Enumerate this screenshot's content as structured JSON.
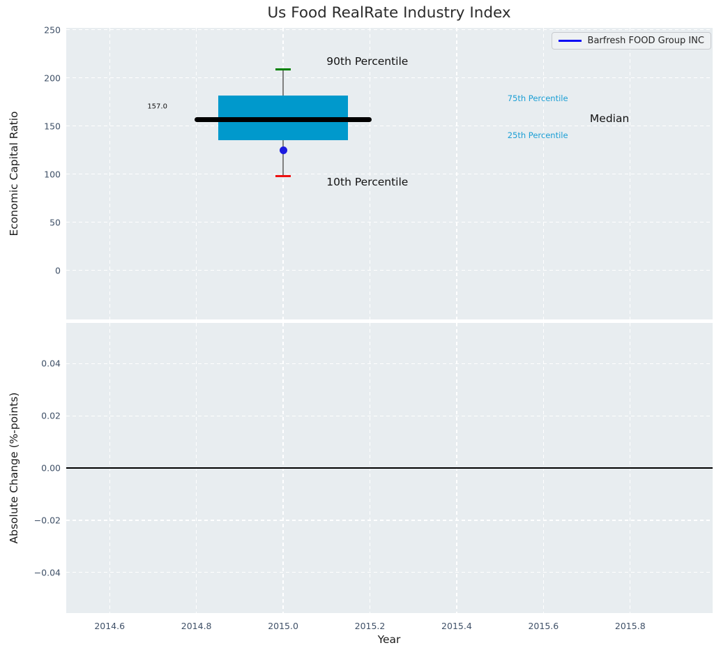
{
  "figure": {
    "title": "Us Food RealRate Industry Index",
    "background": "#ffffff",
    "axes_background": "#e8edf0",
    "grid_color": "#ffffff",
    "tick_text_color": "#3f5067",
    "axis_label_color": "#1a1a1a"
  },
  "legend": {
    "label": "Barfresh FOOD Group INC",
    "line_color": "#0d0df5"
  },
  "chart_data": {
    "type": "boxplot",
    "title": "Us Food RealRate Industry Index",
    "xlabel": "Year",
    "xlim": [
      2014.5,
      2015.99
    ],
    "xticks": [
      {
        "v": 2014.6,
        "label": "2014.6"
      },
      {
        "v": 2014.8,
        "label": "2014.8"
      },
      {
        "v": 2015.0,
        "label": "2015.0"
      },
      {
        "v": 2015.2,
        "label": "2015.2"
      },
      {
        "v": 2015.4,
        "label": "2015.4"
      },
      {
        "v": 2015.6,
        "label": "2015.6"
      },
      {
        "v": 2015.8,
        "label": "2015.8"
      }
    ],
    "top_panel": {
      "ylabel": "Economic Capital Ratio",
      "ylim": [
        -51,
        252
      ],
      "yticks": [
        {
          "v": 250,
          "label": "250"
        },
        {
          "v": 200,
          "label": "200"
        },
        {
          "v": 150,
          "label": "150"
        },
        {
          "v": 100,
          "label": "100"
        },
        {
          "v": 50,
          "label": "50"
        },
        {
          "v": 0,
          "label": "0"
        }
      ],
      "distribution": {
        "year": 2015.0,
        "p90": 209,
        "p75": 182,
        "median": 157.0,
        "p25": 135,
        "p10": 98,
        "company_name": "Barfresh FOOD Group INC",
        "company_value": 125,
        "box_half_width": 0.15,
        "median_half_width": 0.2,
        "cap_half_width": 0.017,
        "box_color": "#0099cc",
        "median_color": "#000000",
        "whisker_color": "#7f7f7f",
        "p90_cap_color": "#008000",
        "p10_cap_color": "#ee1111",
        "point_color": "#1b1be0"
      },
      "median_value_label": {
        "text": "157.0",
        "x": 2014.733,
        "y": 170,
        "size": 10,
        "color": "#111111",
        "ha": "right"
      },
      "annotations": [
        {
          "text": "90th Percentile",
          "x": 2015.1,
          "y": 217,
          "size": 15.5,
          "color": "#111111",
          "ha": "left"
        },
        {
          "text": "75th Percentile",
          "x": 2015.517,
          "y": 179,
          "size": 11.5,
          "color": "#1a9ed4",
          "ha": "left"
        },
        {
          "text": "Median",
          "x": 2015.707,
          "y": 158,
          "size": 15.5,
          "color": "#111111",
          "ha": "left"
        },
        {
          "text": "25th Percentile",
          "x": 2015.517,
          "y": 140.5,
          "size": 11.5,
          "color": "#1a9ed4",
          "ha": "left"
        },
        {
          "text": "10th Percentile",
          "x": 2015.1,
          "y": 92,
          "size": 15.5,
          "color": "#111111",
          "ha": "left"
        }
      ]
    },
    "bottom_panel": {
      "ylabel": "Absolute Change (%-points)",
      "ylim": [
        -0.0556,
        0.0556
      ],
      "yticks": [
        {
          "v": 0.04,
          "label": "0.04"
        },
        {
          "v": 0.02,
          "label": "0.02"
        },
        {
          "v": 0.0,
          "label": "0.00"
        },
        {
          "v": -0.02,
          "label": "−0.02"
        },
        {
          "v": -0.04,
          "label": "−0.04"
        }
      ],
      "zero_line_y": 0.0
    }
  }
}
